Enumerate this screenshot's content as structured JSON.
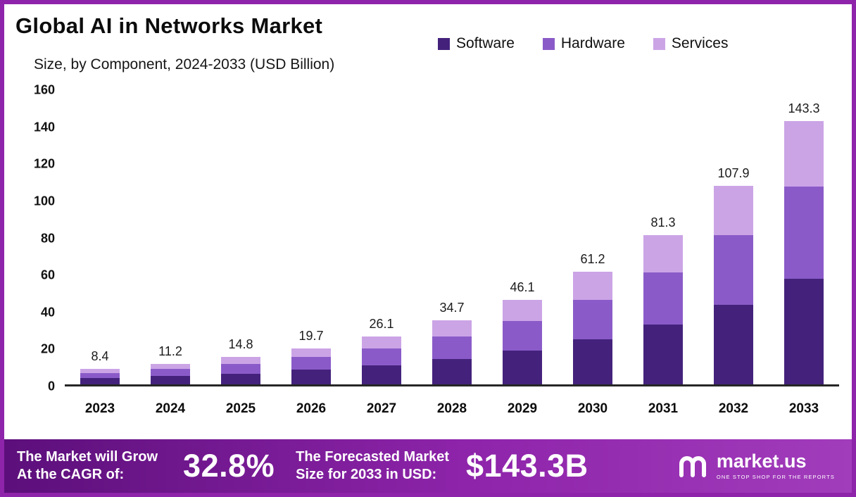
{
  "frame": {
    "border_color": "#8e24aa"
  },
  "header": {
    "title": "Global AI in Networks Market",
    "subtitle": "Size, by Component, 2024-2033 (USD Billion)"
  },
  "chart_data": {
    "type": "bar",
    "stacked": true,
    "title": "Global AI in Networks Market Size, by Component, 2024-2033 (USD Billion)",
    "categories": [
      "2023",
      "2024",
      "2025",
      "2026",
      "2027",
      "2028",
      "2029",
      "2030",
      "2031",
      "2032",
      "2033"
    ],
    "series": [
      {
        "name": "Software",
        "color": "#44227c",
        "values": [
          3.4,
          4.5,
          5.9,
          7.9,
          10.4,
          13.9,
          18.4,
          24.5,
          32.5,
          43.2,
          57.3
        ]
      },
      {
        "name": "Hardware",
        "color": "#8a5bc8",
        "values": [
          2.9,
          3.9,
          5.2,
          6.9,
          9.1,
          12.1,
          16.1,
          21.4,
          28.5,
          37.8,
          50.2
        ]
      },
      {
        "name": "Services",
        "color": "#cba4e6",
        "values": [
          2.1,
          2.8,
          3.7,
          4.9,
          6.6,
          8.7,
          11.6,
          15.3,
          20.3,
          26.9,
          35.8
        ]
      }
    ],
    "totals": [
      8.4,
      11.2,
      14.8,
      19.7,
      26.1,
      34.7,
      46.1,
      61.2,
      81.3,
      107.9,
      143.3
    ],
    "xlabel": "",
    "ylabel": "",
    "ylim": [
      0,
      160
    ],
    "yticks": [
      0,
      20,
      40,
      60,
      80,
      100,
      120,
      140,
      160
    ],
    "legend_position": "top-right",
    "grid": false
  },
  "banner": {
    "cagr_label_line1": "The Market will Grow",
    "cagr_label_line2": "At the CAGR of:",
    "cagr_value": "32.8%",
    "forecast_label_line1": "The Forecasted Market",
    "forecast_label_line2": "Size for 2033 in USD:",
    "forecast_value": "$143.3B",
    "logo_text": "market.us",
    "logo_tagline": "ONE STOP SHOP FOR THE REPORTS"
  }
}
